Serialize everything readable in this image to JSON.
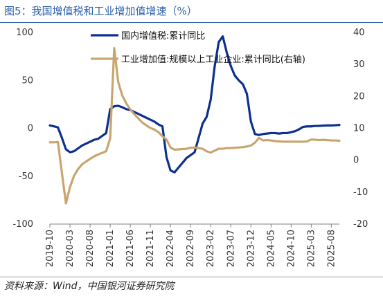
{
  "figure": {
    "title": "图5：我国增值税和工业增加值增速（%）",
    "source": "资料来源：Wind，中国银河证券研究院"
  },
  "chart_data": {
    "type": "line",
    "x": [
      "2019-10",
      "2019-11",
      "2019-12",
      "2020-01",
      "2020-02",
      "2020-03",
      "2020-04",
      "2020-05",
      "2020-06",
      "2020-07",
      "2020-08",
      "2020-09",
      "2020-10",
      "2020-11",
      "2020-12",
      "2021-01",
      "2021-02",
      "2021-03",
      "2021-04",
      "2021-05",
      "2021-06",
      "2021-07",
      "2021-08",
      "2021-09",
      "2021-10",
      "2021-11",
      "2021-12",
      "2022-01",
      "2022-02",
      "2022-03",
      "2022-04",
      "2022-05",
      "2022-06",
      "2022-07",
      "2022-08",
      "2022-09",
      "2022-10",
      "2022-11",
      "2022-12",
      "2023-01",
      "2023-02",
      "2023-03",
      "2023-04",
      "2023-05",
      "2023-06",
      "2023-07",
      "2023-08",
      "2023-09",
      "2023-10",
      "2023-11",
      "2023-12",
      "2024-01",
      "2024-02",
      "2024-03",
      "2024-04",
      "2024-05",
      "2024-06",
      "2024-07",
      "2024-08",
      "2024-09",
      "2024-10",
      "2024-11",
      "2024-12",
      "2025-01",
      "2025-02",
      "2025-03",
      "2025-04",
      "2025-05",
      "2025-06",
      "2025-07",
      "2025-08",
      "2025-09",
      "2025-10"
    ],
    "x_tick_labels": [
      "2019-10",
      "2020-03",
      "2020-08",
      "2021-01",
      "2021-06",
      "2021-11",
      "2022-04",
      "2022-09",
      "2023-02",
      "2023-07",
      "2023-12",
      "2024-05",
      "2024-10",
      "2025-03",
      "2025-08"
    ],
    "series": [
      {
        "name": "国内增值税:累计同比",
        "axis": "left",
        "color": "#0d2f8f",
        "values": [
          3,
          2,
          1,
          -10,
          -22,
          -25,
          -24,
          -21,
          -18,
          -16,
          -14,
          -12,
          -11,
          -8,
          -5,
          20,
          23,
          23.5,
          22,
          20,
          19,
          17,
          15,
          13,
          11,
          9,
          7,
          4,
          2,
          -30,
          -44,
          -46,
          -41,
          -36,
          -31,
          -28,
          -25,
          -10,
          5,
          12,
          30,
          65,
          90,
          96,
          79,
          65,
          55,
          50,
          46,
          36,
          7,
          -6,
          -7,
          -6,
          -5.5,
          -5,
          -5,
          -5.5,
          -5,
          -5,
          -4,
          -3,
          -1,
          1.5,
          2,
          2,
          2.5,
          2.5,
          2.8,
          3,
          3,
          3.2,
          3.5
        ]
      },
      {
        "name": "工业增加值:规模以上工业企业:累计同比(右轴)",
        "axis": "right",
        "color": "#c9a56e",
        "values": [
          5.6,
          5.6,
          5.7,
          -4,
          -13.5,
          -8.4,
          -4.9,
          -2.8,
          -1.3,
          -0.4,
          0.4,
          1.2,
          1.8,
          2.3,
          2.8,
          6.8,
          35.1,
          24.5,
          20.3,
          17.8,
          15.9,
          14.4,
          13.1,
          11.8,
          10.9,
          10.1,
          9.6,
          8.8,
          7.5,
          6.5,
          4,
          3.3,
          3.4,
          3.5,
          3.6,
          3.9,
          4,
          3.8,
          3.6,
          2.8,
          2.4,
          3,
          3.6,
          3.6,
          3.8,
          3.8,
          3.9,
          4,
          4.1,
          4.3,
          4.6,
          5.5,
          7,
          6.2,
          6.3,
          6.2,
          6,
          5.9,
          5.8,
          5.8,
          5.8,
          5.8,
          5.8,
          5.8,
          5.9,
          6.5,
          6.4,
          6.3,
          6.4,
          6.3,
          6.2,
          6.2,
          6.1
        ]
      }
    ],
    "y_left": {
      "min": -100,
      "max": 100,
      "ticks": [
        100,
        50,
        0,
        -50,
        -100
      ]
    },
    "y_right": {
      "min": -20,
      "max": 40,
      "ticks": [
        40,
        30,
        20,
        10,
        0,
        -10,
        -20
      ]
    },
    "grid": false,
    "legend": {
      "placement": "top-center",
      "style": "line-swatch"
    }
  }
}
